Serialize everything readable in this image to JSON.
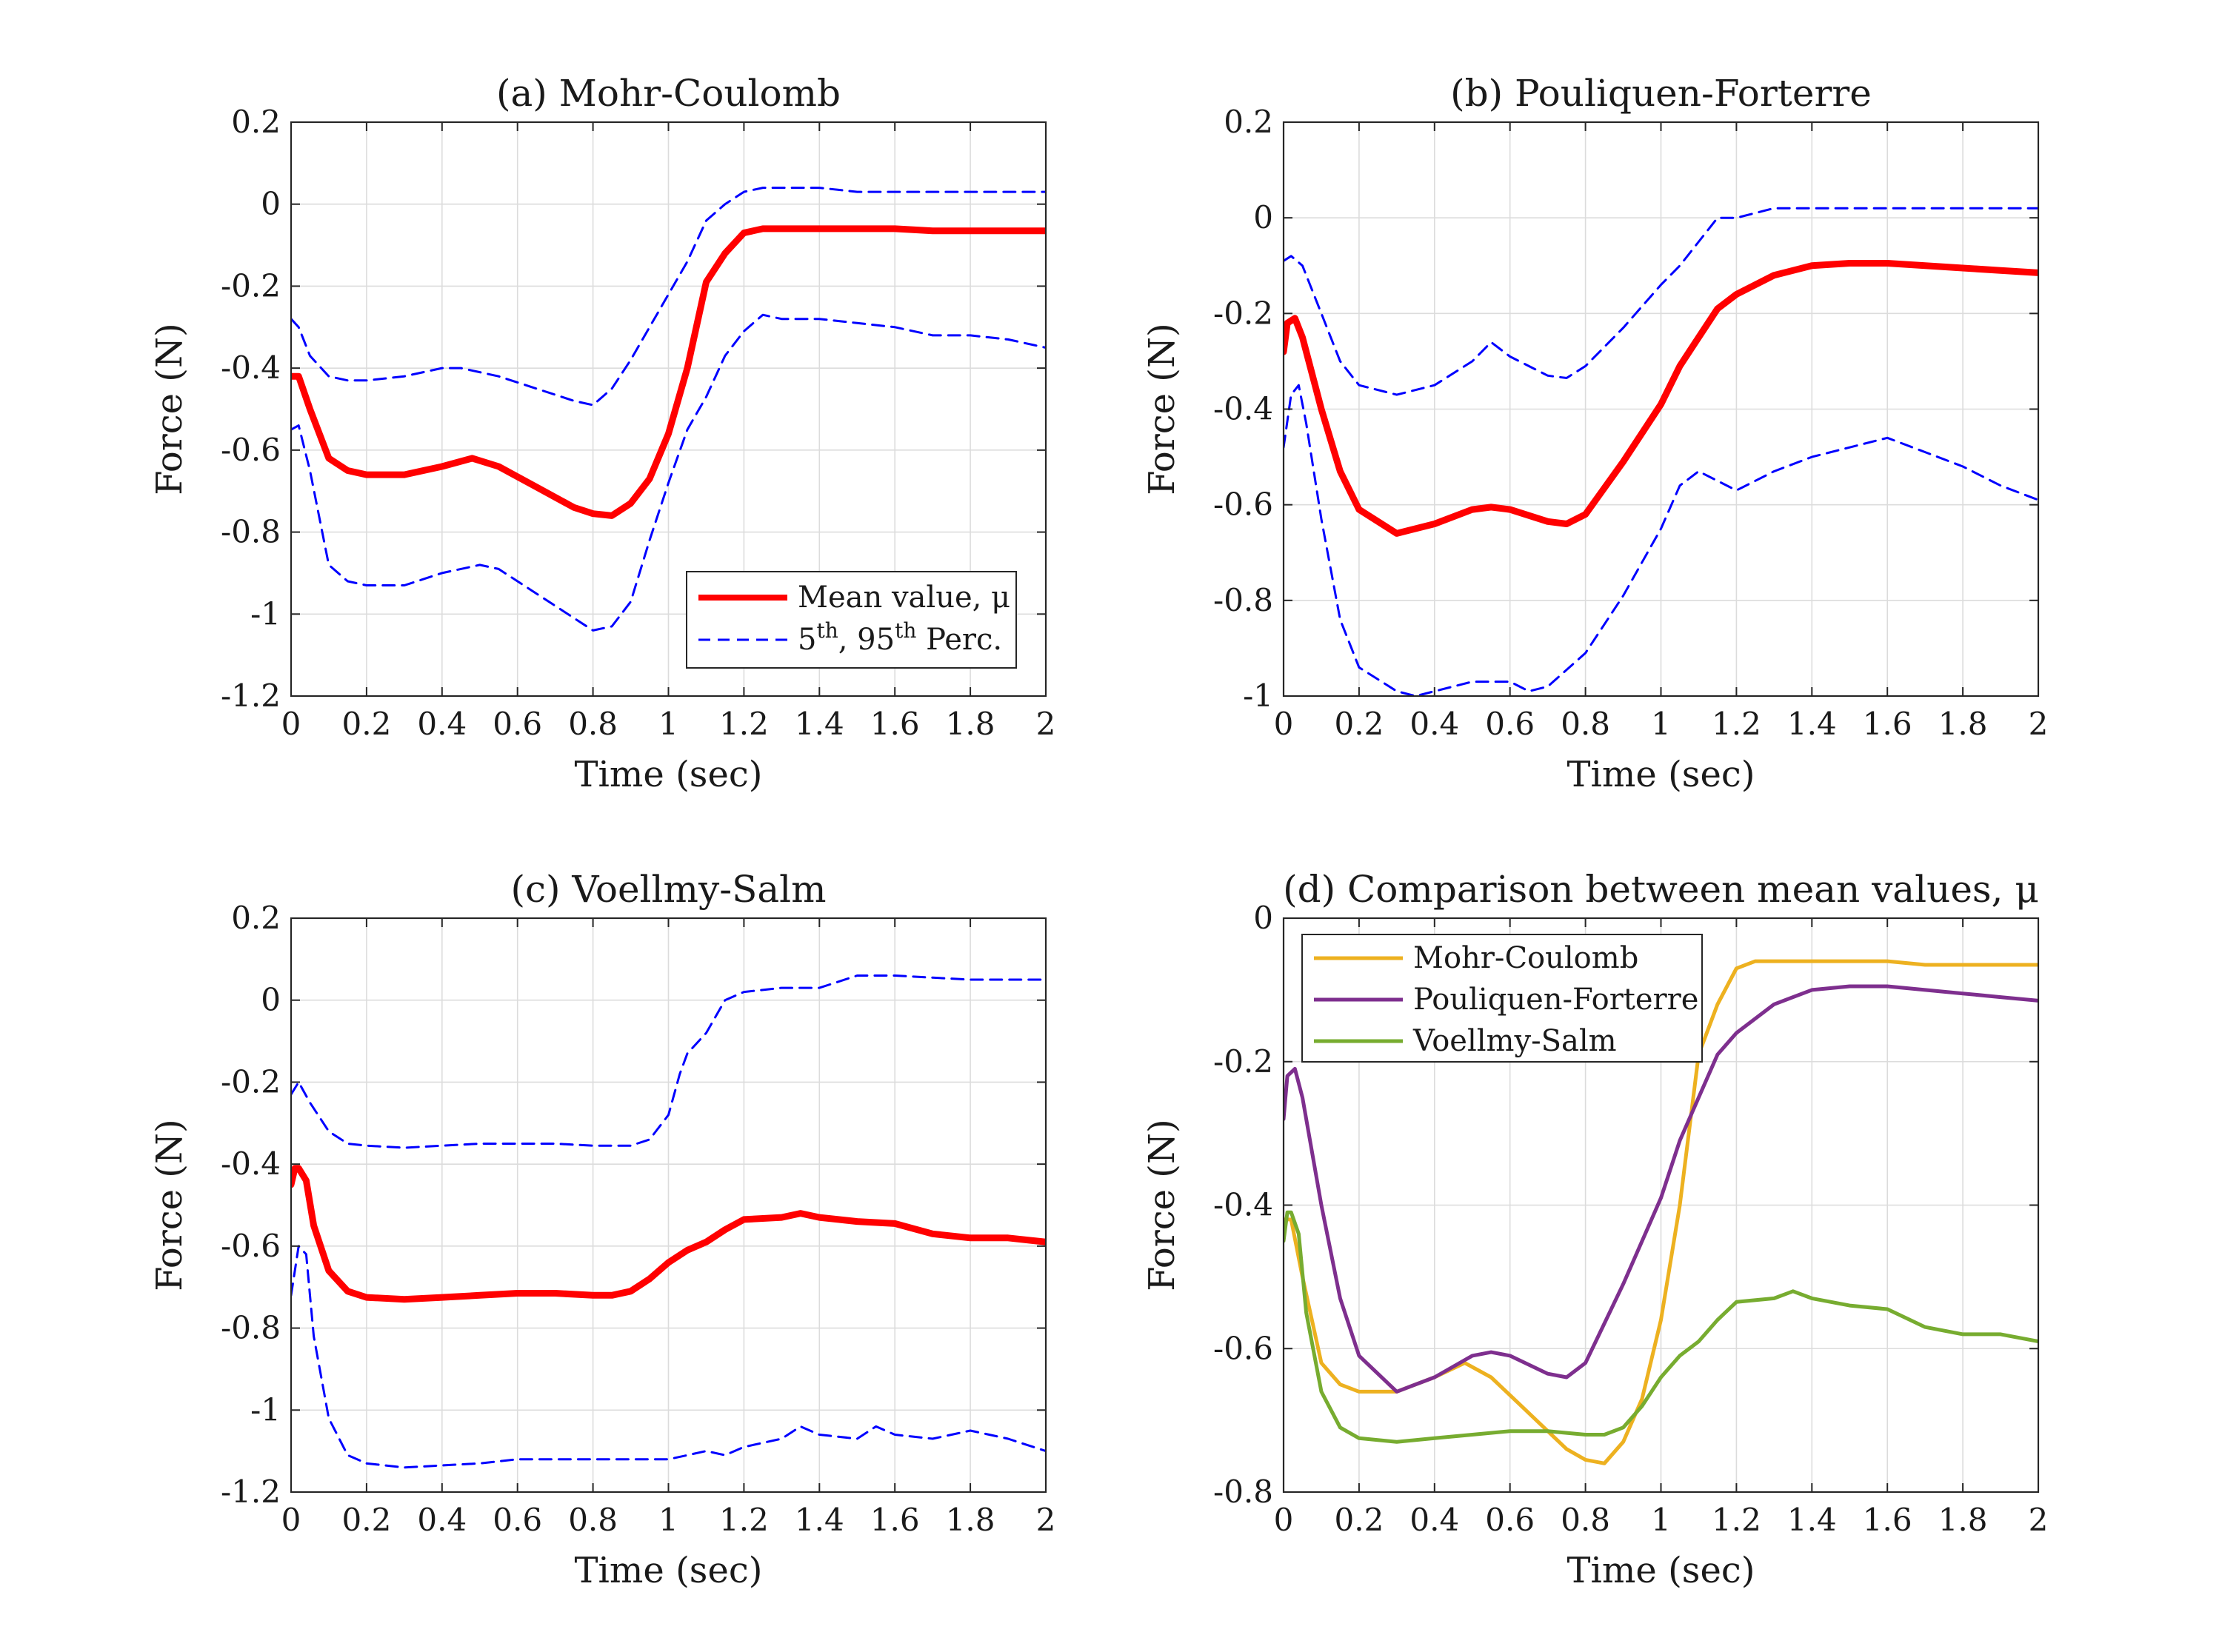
{
  "chart_data": [
    {
      "type": "line",
      "title": "(a) Mohr-Coulomb",
      "xlabel": "Time (sec)",
      "ylabel": "Force (N)",
      "xlim": [
        0,
        2
      ],
      "ylim": [
        -1.2,
        0.2
      ],
      "xticks": [
        "0",
        "0.2",
        "0.4",
        "0.6",
        "0.8",
        "1",
        "1.2",
        "1.4",
        "1.6",
        "1.8",
        "2"
      ],
      "yticks": [
        "0.2",
        "0",
        "-0.2",
        "-0.4",
        "-0.6",
        "-0.8",
        "-1",
        "-1.2"
      ],
      "grid": true,
      "legend": {
        "position": "bottom-right",
        "entries": [
          {
            "label": "Mean value, μ",
            "style": "solid",
            "color": "#ff0000"
          },
          {
            "label_html": "5<tspan font-size='28' dy='-16'>th</tspan><tspan dy='16'>, 95</tspan><tspan font-size='28' dy='-16'>th</tspan><tspan dy='16'> Perc.</tspan>",
            "label": "5th, 95th Perc.",
            "style": "dashed",
            "color": "#0000ff"
          }
        ]
      },
      "series": [
        {
          "name": "Mean value, μ",
          "color": "#ff0000",
          "style": "solid",
          "x": [
            0,
            0.02,
            0.05,
            0.1,
            0.15,
            0.2,
            0.3,
            0.4,
            0.48,
            0.55,
            0.65,
            0.75,
            0.8,
            0.85,
            0.9,
            0.95,
            1.0,
            1.05,
            1.1,
            1.15,
            1.2,
            1.25,
            1.3,
            1.4,
            1.5,
            1.6,
            1.7,
            1.8,
            1.9,
            2.0
          ],
          "y": [
            -0.42,
            -0.42,
            -0.5,
            -0.62,
            -0.65,
            -0.66,
            -0.66,
            -0.64,
            -0.62,
            -0.64,
            -0.69,
            -0.74,
            -0.755,
            -0.76,
            -0.73,
            -0.67,
            -0.56,
            -0.4,
            -0.19,
            -0.12,
            -0.07,
            -0.06,
            -0.06,
            -0.06,
            -0.06,
            -0.06,
            -0.065,
            -0.065,
            -0.065,
            -0.065
          ]
        },
        {
          "name": "95th percentile",
          "color": "#0000ff",
          "style": "dashed",
          "x": [
            0,
            0.02,
            0.05,
            0.1,
            0.15,
            0.2,
            0.3,
            0.4,
            0.45,
            0.55,
            0.65,
            0.75,
            0.8,
            0.85,
            0.9,
            0.95,
            1.0,
            1.05,
            1.1,
            1.15,
            1.2,
            1.25,
            1.3,
            1.4,
            1.5,
            1.6,
            1.7,
            1.8,
            1.9,
            2.0
          ],
          "y": [
            -0.28,
            -0.3,
            -0.37,
            -0.42,
            -0.43,
            -0.43,
            -0.42,
            -0.4,
            -0.4,
            -0.42,
            -0.45,
            -0.48,
            -0.49,
            -0.45,
            -0.38,
            -0.3,
            -0.22,
            -0.14,
            -0.04,
            0.0,
            0.03,
            0.04,
            0.04,
            0.04,
            0.03,
            0.03,
            0.03,
            0.03,
            0.03,
            0.03
          ]
        },
        {
          "name": "5th percentile",
          "color": "#0000ff",
          "style": "dashed",
          "x": [
            0,
            0.02,
            0.05,
            0.1,
            0.15,
            0.2,
            0.3,
            0.4,
            0.5,
            0.55,
            0.65,
            0.75,
            0.8,
            0.85,
            0.9,
            0.95,
            1.0,
            1.05,
            1.1,
            1.15,
            1.2,
            1.25,
            1.3,
            1.4,
            1.5,
            1.6,
            1.7,
            1.8,
            1.9,
            2.0
          ],
          "y": [
            -0.55,
            -0.54,
            -0.65,
            -0.88,
            -0.92,
            -0.93,
            -0.93,
            -0.9,
            -0.88,
            -0.89,
            -0.95,
            -1.01,
            -1.04,
            -1.03,
            -0.97,
            -0.82,
            -0.68,
            -0.55,
            -0.47,
            -0.37,
            -0.31,
            -0.27,
            -0.28,
            -0.28,
            -0.29,
            -0.3,
            -0.32,
            -0.32,
            -0.33,
            -0.35
          ]
        }
      ]
    },
    {
      "type": "line",
      "title": "(b) Pouliquen-Forterre",
      "xlabel": "Time (sec)",
      "ylabel": "Force (N)",
      "xlim": [
        0,
        2
      ],
      "ylim": [
        -1,
        0.2
      ],
      "xticks": [
        "0",
        "0.2",
        "0.4",
        "0.6",
        "0.8",
        "1",
        "1.2",
        "1.4",
        "1.6",
        "1.8",
        "2"
      ],
      "yticks": [
        "0.2",
        "0",
        "-0.2",
        "-0.4",
        "-0.6",
        "-0.8",
        "-1"
      ],
      "grid": true,
      "series": [
        {
          "name": "Mean value, μ",
          "color": "#ff0000",
          "style": "solid",
          "x": [
            0,
            0.01,
            0.03,
            0.05,
            0.1,
            0.15,
            0.2,
            0.3,
            0.4,
            0.5,
            0.55,
            0.6,
            0.7,
            0.75,
            0.8,
            0.9,
            1.0,
            1.05,
            1.1,
            1.15,
            1.2,
            1.3,
            1.4,
            1.5,
            1.6,
            1.7,
            1.8,
            1.9,
            2.0
          ],
          "y": [
            -0.28,
            -0.22,
            -0.21,
            -0.25,
            -0.4,
            -0.53,
            -0.61,
            -0.66,
            -0.64,
            -0.61,
            -0.605,
            -0.61,
            -0.635,
            -0.64,
            -0.62,
            -0.51,
            -0.39,
            -0.31,
            -0.25,
            -0.19,
            -0.16,
            -0.12,
            -0.1,
            -0.095,
            -0.095,
            -0.1,
            -0.105,
            -0.11,
            -0.115
          ]
        },
        {
          "name": "95th percentile",
          "color": "#0000ff",
          "style": "dashed",
          "x": [
            0,
            0.02,
            0.05,
            0.1,
            0.15,
            0.2,
            0.3,
            0.4,
            0.5,
            0.55,
            0.6,
            0.7,
            0.75,
            0.8,
            0.9,
            1.0,
            1.05,
            1.1,
            1.15,
            1.2,
            1.25,
            1.3,
            1.4,
            1.5,
            1.6,
            1.7,
            1.8,
            1.9,
            2.0
          ],
          "y": [
            -0.09,
            -0.08,
            -0.1,
            -0.2,
            -0.3,
            -0.35,
            -0.37,
            -0.35,
            -0.3,
            -0.26,
            -0.29,
            -0.33,
            -0.335,
            -0.31,
            -0.23,
            -0.14,
            -0.1,
            -0.05,
            0.0,
            0.0,
            0.01,
            0.02,
            0.02,
            0.02,
            0.02,
            0.02,
            0.02,
            0.02,
            0.02
          ]
        },
        {
          "name": "5th percentile",
          "color": "#0000ff",
          "style": "dashed",
          "x": [
            0,
            0.02,
            0.04,
            0.06,
            0.1,
            0.15,
            0.2,
            0.3,
            0.35,
            0.4,
            0.5,
            0.6,
            0.65,
            0.7,
            0.8,
            0.9,
            1.0,
            1.05,
            1.1,
            1.15,
            1.2,
            1.3,
            1.4,
            1.5,
            1.6,
            1.7,
            1.8,
            1.9,
            2.0
          ],
          "y": [
            -0.48,
            -0.37,
            -0.35,
            -0.43,
            -0.63,
            -0.84,
            -0.94,
            -0.99,
            -1.0,
            -0.99,
            -0.97,
            -0.97,
            -0.99,
            -0.98,
            -0.91,
            -0.79,
            -0.65,
            -0.56,
            -0.53,
            -0.55,
            -0.57,
            -0.53,
            -0.5,
            -0.48,
            -0.46,
            -0.49,
            -0.52,
            -0.56,
            -0.59
          ]
        }
      ]
    },
    {
      "type": "line",
      "title": "(c) Voellmy-Salm",
      "xlabel": "Time (sec)",
      "ylabel": "Force (N)",
      "xlim": [
        0,
        2
      ],
      "ylim": [
        -1.2,
        0.2
      ],
      "xticks": [
        "0",
        "0.2",
        "0.4",
        "0.6",
        "0.8",
        "1",
        "1.2",
        "1.4",
        "1.6",
        "1.8",
        "2"
      ],
      "yticks": [
        "0.2",
        "0",
        "-0.2",
        "-0.4",
        "-0.6",
        "-0.8",
        "-1",
        "-1.2"
      ],
      "grid": true,
      "series": [
        {
          "name": "Mean value, μ",
          "color": "#ff0000",
          "style": "solid",
          "x": [
            0,
            0.01,
            0.02,
            0.04,
            0.06,
            0.1,
            0.15,
            0.2,
            0.3,
            0.4,
            0.5,
            0.6,
            0.7,
            0.8,
            0.85,
            0.9,
            0.95,
            1.0,
            1.05,
            1.1,
            1.15,
            1.2,
            1.3,
            1.35,
            1.4,
            1.5,
            1.6,
            1.7,
            1.8,
            1.9,
            2.0
          ],
          "y": [
            -0.45,
            -0.41,
            -0.41,
            -0.44,
            -0.55,
            -0.66,
            -0.71,
            -0.725,
            -0.73,
            -0.725,
            -0.72,
            -0.715,
            -0.715,
            -0.72,
            -0.72,
            -0.71,
            -0.68,
            -0.64,
            -0.61,
            -0.59,
            -0.56,
            -0.535,
            -0.53,
            -0.52,
            -0.53,
            -0.54,
            -0.545,
            -0.57,
            -0.58,
            -0.58,
            -0.59
          ]
        },
        {
          "name": "95th percentile",
          "color": "#0000ff",
          "style": "dashed",
          "x": [
            0,
            0.02,
            0.05,
            0.1,
            0.15,
            0.2,
            0.3,
            0.4,
            0.5,
            0.6,
            0.7,
            0.8,
            0.9,
            0.95,
            1.0,
            1.03,
            1.05,
            1.1,
            1.15,
            1.2,
            1.3,
            1.4,
            1.5,
            1.6,
            1.7,
            1.8,
            1.9,
            2.0
          ],
          "y": [
            -0.23,
            -0.2,
            -0.25,
            -0.32,
            -0.35,
            -0.355,
            -0.36,
            -0.355,
            -0.35,
            -0.35,
            -0.35,
            -0.355,
            -0.355,
            -0.34,
            -0.28,
            -0.18,
            -0.13,
            -0.08,
            0.0,
            0.02,
            0.03,
            0.03,
            0.06,
            0.06,
            0.055,
            0.05,
            0.05,
            0.05
          ]
        },
        {
          "name": "5th percentile",
          "color": "#0000ff",
          "style": "dashed",
          "x": [
            0,
            0.02,
            0.04,
            0.06,
            0.1,
            0.15,
            0.2,
            0.3,
            0.4,
            0.5,
            0.6,
            0.7,
            0.8,
            0.9,
            1.0,
            1.05,
            1.1,
            1.15,
            1.2,
            1.3,
            1.35,
            1.4,
            1.5,
            1.55,
            1.6,
            1.7,
            1.8,
            1.9,
            2.0
          ],
          "y": [
            -0.72,
            -0.6,
            -0.62,
            -0.82,
            -1.02,
            -1.11,
            -1.13,
            -1.14,
            -1.135,
            -1.13,
            -1.12,
            -1.12,
            -1.12,
            -1.12,
            -1.12,
            -1.11,
            -1.1,
            -1.11,
            -1.09,
            -1.07,
            -1.04,
            -1.06,
            -1.07,
            -1.04,
            -1.06,
            -1.07,
            -1.05,
            -1.07,
            -1.1
          ]
        }
      ]
    },
    {
      "type": "line",
      "title": "(d) Comparison between mean values, μ",
      "xlabel": "Time (sec)",
      "ylabel": "Force (N)",
      "xlim": [
        0,
        2
      ],
      "ylim": [
        -0.8,
        0
      ],
      "xticks": [
        "0",
        "0.2",
        "0.4",
        "0.6",
        "0.8",
        "1",
        "1.2",
        "1.4",
        "1.6",
        "1.8",
        "2"
      ],
      "yticks": [
        "0",
        "-0.2",
        "-0.4",
        "-0.6",
        "-0.8"
      ],
      "grid": true,
      "legend": {
        "position": "top-left",
        "entries": [
          {
            "label": "Mohr-Coulomb",
            "style": "solid",
            "color": "#edb120"
          },
          {
            "label": "Pouliquen-Forterre",
            "style": "solid",
            "color": "#7e2f8e"
          },
          {
            "label": "Voellmy-Salm",
            "style": "solid",
            "color": "#77ac30"
          }
        ]
      },
      "series": [
        {
          "name": "Mohr-Coulomb",
          "color": "#edb120",
          "style": "solid",
          "x": [
            0,
            0.02,
            0.05,
            0.1,
            0.15,
            0.2,
            0.3,
            0.4,
            0.48,
            0.55,
            0.65,
            0.75,
            0.8,
            0.85,
            0.9,
            0.95,
            1.0,
            1.05,
            1.1,
            1.15,
            1.2,
            1.25,
            1.3,
            1.4,
            1.5,
            1.6,
            1.7,
            1.8,
            1.9,
            2.0
          ],
          "y": [
            -0.42,
            -0.42,
            -0.5,
            -0.62,
            -0.65,
            -0.66,
            -0.66,
            -0.64,
            -0.62,
            -0.64,
            -0.69,
            -0.74,
            -0.755,
            -0.76,
            -0.73,
            -0.67,
            -0.56,
            -0.4,
            -0.19,
            -0.12,
            -0.07,
            -0.06,
            -0.06,
            -0.06,
            -0.06,
            -0.06,
            -0.065,
            -0.065,
            -0.065,
            -0.065
          ]
        },
        {
          "name": "Pouliquen-Forterre",
          "color": "#7e2f8e",
          "style": "solid",
          "x": [
            0,
            0.01,
            0.03,
            0.05,
            0.1,
            0.15,
            0.2,
            0.3,
            0.4,
            0.5,
            0.55,
            0.6,
            0.7,
            0.75,
            0.8,
            0.9,
            1.0,
            1.05,
            1.1,
            1.15,
            1.2,
            1.3,
            1.4,
            1.5,
            1.6,
            1.7,
            1.8,
            1.9,
            2.0
          ],
          "y": [
            -0.28,
            -0.22,
            -0.21,
            -0.25,
            -0.4,
            -0.53,
            -0.61,
            -0.66,
            -0.64,
            -0.61,
            -0.605,
            -0.61,
            -0.635,
            -0.64,
            -0.62,
            -0.51,
            -0.39,
            -0.31,
            -0.25,
            -0.19,
            -0.16,
            -0.12,
            -0.1,
            -0.095,
            -0.095,
            -0.1,
            -0.105,
            -0.11,
            -0.115
          ]
        },
        {
          "name": "Voellmy-Salm",
          "color": "#77ac30",
          "style": "solid",
          "x": [
            0,
            0.01,
            0.02,
            0.04,
            0.06,
            0.1,
            0.15,
            0.2,
            0.3,
            0.4,
            0.5,
            0.6,
            0.7,
            0.8,
            0.85,
            0.9,
            0.95,
            1.0,
            1.05,
            1.1,
            1.15,
            1.2,
            1.3,
            1.35,
            1.4,
            1.5,
            1.6,
            1.7,
            1.8,
            1.9,
            2.0
          ],
          "y": [
            -0.45,
            -0.41,
            -0.41,
            -0.44,
            -0.55,
            -0.66,
            -0.71,
            -0.725,
            -0.73,
            -0.725,
            -0.72,
            -0.715,
            -0.715,
            -0.72,
            -0.72,
            -0.71,
            -0.68,
            -0.64,
            -0.61,
            -0.59,
            -0.56,
            -0.535,
            -0.53,
            -0.52,
            -0.53,
            -0.54,
            -0.545,
            -0.57,
            -0.58,
            -0.58,
            -0.59
          ]
        }
      ]
    }
  ]
}
